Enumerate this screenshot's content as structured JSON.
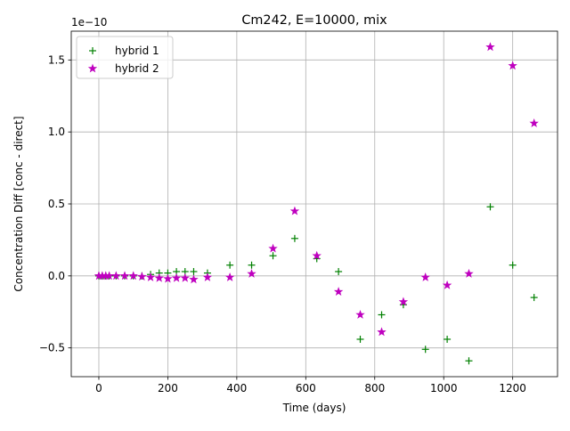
{
  "chart_data": {
    "type": "scatter",
    "title": "Cm242, E=10000, mix",
    "xlabel": "Time (days)",
    "ylabel": "Concentration Diff [conc - direct]",
    "y_offset_label": "1e−10",
    "y_scale": 1e-10,
    "xlim": [
      -80,
      1330
    ],
    "ylim": [
      -0.7,
      1.7
    ],
    "x_ticks": [
      0,
      200,
      400,
      600,
      800,
      1000,
      1200
    ],
    "x_tick_labels": [
      "0",
      "200",
      "400",
      "600",
      "800",
      "1000",
      "1200"
    ],
    "y_ticks": [
      -0.5,
      0.0,
      0.5,
      1.0,
      1.5
    ],
    "y_tick_labels": [
      "−0.5",
      "0.0",
      "0.5",
      "1.0",
      "1.5"
    ],
    "grid": true,
    "legend_position": "upper-left",
    "series": [
      {
        "name": "hybrid 1",
        "marker": "plus",
        "color": "#008000",
        "x": [
          0,
          10,
          20,
          30,
          50,
          75,
          100,
          125,
          150,
          175,
          200,
          225,
          250,
          275,
          315,
          380,
          443,
          505,
          568,
          632,
          695,
          758,
          820,
          883,
          947,
          1010,
          1073,
          1135,
          1200,
          1262
        ],
        "y": [
          0.0,
          0.0,
          0.0,
          0.0,
          0.0,
          0.0,
          0.0,
          0.0,
          0.01,
          0.02,
          0.02,
          0.03,
          0.03,
          0.03,
          0.02,
          0.075,
          0.075,
          0.14,
          0.26,
          0.12,
          0.03,
          -0.44,
          -0.27,
          -0.2,
          -0.51,
          -0.44,
          -0.59,
          0.48,
          0.075,
          -0.15
        ]
      },
      {
        "name": "hybrid 2",
        "marker": "star",
        "color": "#bf00bf",
        "x": [
          0,
          10,
          20,
          30,
          50,
          75,
          100,
          125,
          150,
          175,
          200,
          225,
          250,
          275,
          315,
          380,
          443,
          505,
          568,
          632,
          695,
          758,
          820,
          883,
          947,
          1010,
          1073,
          1135,
          1200,
          1262
        ],
        "y": [
          0.0,
          0.0,
          0.0,
          0.0,
          0.0,
          0.0,
          0.0,
          -0.005,
          -0.01,
          -0.015,
          -0.02,
          -0.015,
          -0.015,
          -0.025,
          -0.01,
          -0.01,
          0.015,
          0.19,
          0.45,
          0.14,
          -0.11,
          -0.27,
          -0.39,
          -0.18,
          -0.01,
          -0.065,
          0.015,
          1.59,
          1.46,
          1.06
        ]
      }
    ]
  }
}
